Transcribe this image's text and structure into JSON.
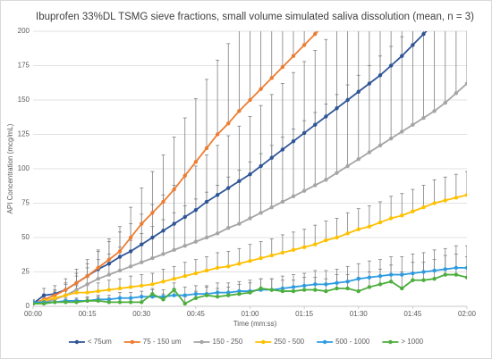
{
  "chart_data": {
    "type": "line",
    "title": "Ibuprofen 33%DL TSMG sieve fractions, small volume simulated saliva dissolution (mean, n = 3)",
    "xlabel": "Time (mm:ss)",
    "ylabel": "API Concentration (mcg/mL)",
    "x": [
      0,
      3,
      6,
      9,
      12,
      15,
      18,
      21,
      24,
      27,
      30,
      33,
      36,
      39,
      42,
      45,
      48,
      51,
      54,
      57,
      60,
      63,
      66,
      69,
      72,
      75,
      78,
      81,
      84,
      87,
      90,
      93,
      96,
      99,
      102,
      105,
      108,
      111,
      114,
      117,
      120
    ],
    "xlim": [
      0,
      120
    ],
    "xticks": [
      {
        "value": 0,
        "label": "00:00"
      },
      {
        "value": 15,
        "label": "00:15"
      },
      {
        "value": 30,
        "label": "00:30"
      },
      {
        "value": 45,
        "label": "00:45"
      },
      {
        "value": 60,
        "label": "01:00"
      },
      {
        "value": 75,
        "label": "01:15"
      },
      {
        "value": 90,
        "label": "01:30"
      },
      {
        "value": 105,
        "label": "01:45"
      },
      {
        "value": 120,
        "label": "02:00"
      }
    ],
    "ylim": [
      0,
      200
    ],
    "yticks": [
      0,
      25,
      50,
      75,
      100,
      125,
      150,
      175,
      200
    ],
    "grid": true,
    "legend": "bottom",
    "error_color": "#7f7f7f",
    "series": [
      {
        "name": "< 75um",
        "color": "#2f5597",
        "values": [
          2,
          8,
          9,
          12,
          17,
          22,
          27,
          31,
          36,
          40,
          45,
          50,
          55,
          60,
          65,
          70,
          76,
          81,
          86,
          91,
          96,
          102,
          108,
          114,
          120,
          126,
          132,
          138,
          144,
          150,
          156,
          162,
          168,
          175,
          182,
          190,
          198,
          206,
          null,
          null,
          null
        ],
        "errors": [
          3,
          5,
          6,
          8,
          10,
          12,
          14,
          16,
          18,
          20,
          22,
          24,
          26,
          28,
          30,
          32,
          34,
          36,
          38,
          40,
          42,
          44,
          46,
          48,
          50,
          52,
          54,
          56,
          58,
          60,
          62,
          64,
          66,
          68,
          70,
          72,
          74,
          76,
          null,
          null,
          null
        ]
      },
      {
        "name": "75 - 150 um",
        "color": "#ed7d31",
        "values": [
          2,
          5,
          8,
          12,
          17,
          22,
          28,
          34,
          40,
          50,
          60,
          68,
          76,
          85,
          95,
          105,
          115,
          125,
          133,
          142,
          150,
          158,
          166,
          174,
          182,
          190,
          198,
          206,
          null,
          null,
          null,
          null,
          null,
          null,
          null,
          null,
          null,
          null,
          null,
          null,
          null
        ],
        "errors": [
          2,
          3,
          4,
          5,
          7,
          9,
          12,
          15,
          18,
          22,
          26,
          30,
          34,
          38,
          42,
          46,
          50,
          54,
          58,
          62,
          66,
          70,
          74,
          78,
          82,
          86,
          90,
          94,
          null,
          null,
          null,
          null,
          null,
          null,
          null,
          null,
          null,
          null,
          null,
          null,
          null
        ]
      },
      {
        "name": "150 - 250",
        "color": "#a5a5a5",
        "values": [
          2,
          3,
          5,
          8,
          12,
          16,
          20,
          23,
          26,
          29,
          32,
          35,
          38,
          41,
          44,
          47,
          50,
          53,
          57,
          60,
          64,
          68,
          72,
          76,
          80,
          84,
          88,
          92,
          97,
          102,
          107,
          112,
          117,
          122,
          127,
          132,
          137,
          142,
          148,
          155,
          162
        ],
        "errors": [
          2,
          4,
          6,
          8,
          10,
          12,
          14,
          15,
          17,
          19,
          21,
          23,
          25,
          27,
          29,
          31,
          33,
          35,
          37,
          39,
          41,
          43,
          45,
          47,
          49,
          51,
          53,
          55,
          57,
          59,
          61,
          63,
          65,
          67,
          69,
          71,
          73,
          75,
          77,
          79,
          81
        ]
      },
      {
        "name": "250 - 500",
        "color": "#ffc000",
        "values": [
          2,
          4,
          6,
          8,
          10,
          10,
          11,
          12,
          13,
          14,
          15,
          16,
          18,
          20,
          22,
          24,
          26,
          28,
          29,
          31,
          33,
          35,
          37,
          39,
          41,
          43,
          45,
          48,
          50,
          53,
          56,
          58,
          61,
          64,
          66,
          69,
          72,
          75,
          77,
          79,
          81
        ],
        "errors": [
          1,
          2,
          3,
          4,
          5,
          6,
          6,
          7,
          7,
          8,
          8,
          8,
          9,
          9,
          10,
          10,
          10,
          11,
          11,
          11,
          12,
          12,
          12,
          13,
          13,
          13,
          14,
          14,
          14,
          15,
          15,
          15,
          15,
          16,
          16,
          16,
          16,
          17,
          17,
          17,
          17
        ]
      },
      {
        "name": "500 - 1000",
        "color": "#2e9be0",
        "values": [
          3,
          3,
          3,
          4,
          4,
          4,
          5,
          5,
          6,
          6,
          7,
          7,
          7,
          8,
          8,
          9,
          9,
          10,
          10,
          11,
          11,
          12,
          12,
          13,
          14,
          15,
          16,
          16,
          17,
          18,
          20,
          21,
          22,
          23,
          23,
          24,
          25,
          26,
          27,
          28,
          28
        ],
        "errors": [
          1,
          1,
          2,
          2,
          2,
          3,
          3,
          3,
          4,
          4,
          4,
          5,
          5,
          5,
          6,
          6,
          6,
          7,
          7,
          7,
          8,
          8,
          8,
          9,
          9,
          9,
          10,
          10,
          10,
          11,
          11,
          12,
          12,
          13,
          13,
          14,
          14,
          15,
          15,
          16,
          16
        ]
      },
      {
        "name": "> 1000",
        "color": "#4cae3c",
        "values": [
          2,
          2,
          3,
          3,
          3,
          4,
          4,
          3,
          3,
          3,
          3,
          9,
          5,
          12,
          2,
          6,
          8,
          7,
          8,
          9,
          10,
          13,
          12,
          11,
          11,
          12,
          12,
          11,
          13,
          13,
          11,
          14,
          16,
          18,
          13,
          19,
          19,
          20,
          23,
          23,
          21
        ],
        "errors": [
          1,
          1,
          2,
          2,
          2,
          2,
          3,
          3,
          3,
          3,
          4,
          4,
          4,
          5,
          5,
          5,
          6,
          6,
          6,
          7,
          7,
          7,
          8,
          8,
          8,
          9,
          9,
          9,
          10,
          10,
          10,
          11,
          11,
          12,
          12,
          13,
          13,
          14,
          14,
          15,
          15
        ]
      }
    ]
  }
}
